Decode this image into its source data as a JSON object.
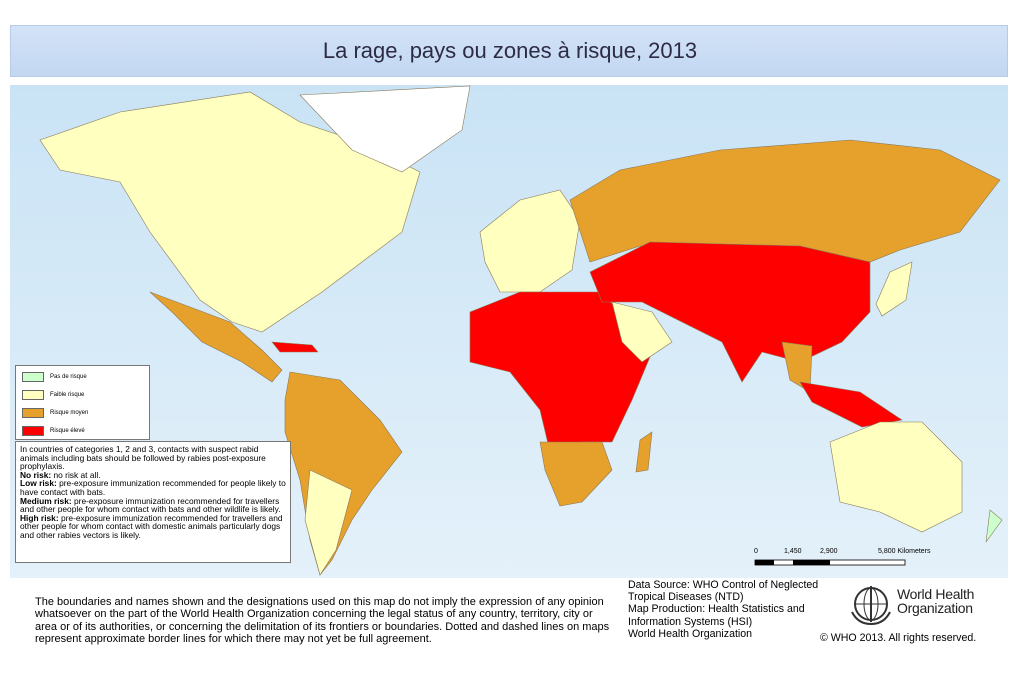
{
  "title": "La rage, pays ou zones à risque, 2013",
  "legend": [
    "Pas de risque",
    "Faible risque",
    "Risque moyen",
    "Risque élevé"
  ],
  "notes": {
    "intro": "In countries of categories 1, 2 and 3, contacts with suspect rabid animals including bats should be followed by rabies post-exposure prophylaxis.",
    "items": [
      {
        "term": "No risk:",
        "text": "no risk at all."
      },
      {
        "term": "Low risk:",
        "text": "pre-exposure immunization recommended for people likely to have contact with bats."
      },
      {
        "term": "Medium risk:",
        "text": "pre-exposure immunization recommended for travellers and other people for whom contact with bats and other wildlife is likely."
      },
      {
        "term": "High risk:",
        "text": "pre-exposure immunization recommended for travellers and other people for whom contact with domestic animals particularly dogs and other rabies vectors is likely."
      }
    ]
  },
  "scale": [
    "0",
    "1,450",
    "2,900",
    "5,800 Kilometers"
  ],
  "disclaimer": "The boundaries and names shown and the designations used on this map do not imply the expression of any opinion whatsoever on the part of the World Health Organization concerning the legal status of any country, territory, city or area or of its authorities, or concerning the delimitation of its frontiers or boundaries. Dotted and dashed lines on maps represent approximate border lines for which there may not yet be full agreement.",
  "data_source": [
    "Data Source: WHO Control of Neglected",
    "Tropical Diseases (NTD)",
    "Map Production: Health Statistics and",
    "Information Systems (HSI)",
    "World Health Organization"
  ],
  "logo": [
    "World Health",
    "Organization"
  ],
  "copyright": "© WHO 2013. All rights reserved."
}
